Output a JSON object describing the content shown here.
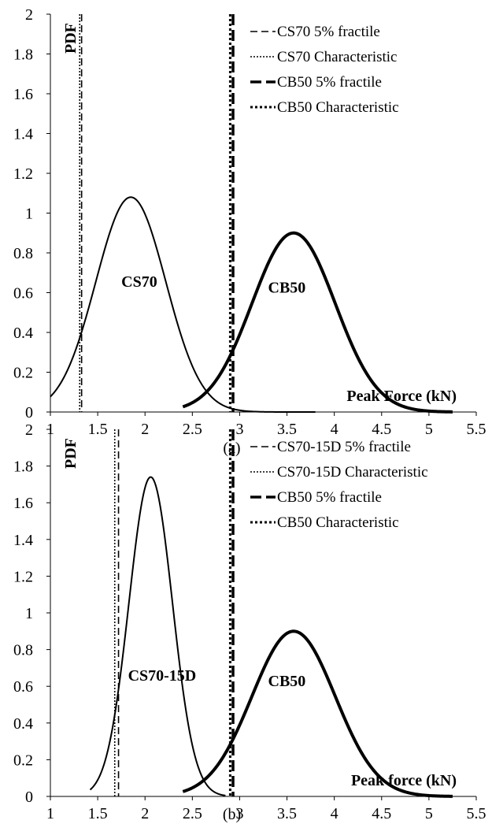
{
  "charts": [
    {
      "chart_data": {
        "type": "line",
        "caption": "(a)",
        "ylabel": "PDF",
        "xlabel": "Peak Force (kN)",
        "xlim": [
          1,
          5.5
        ],
        "ylim": [
          0,
          2
        ],
        "x_ticks": [
          "1",
          "1.5",
          "2",
          "2.5",
          "3",
          "3.5",
          "4",
          "4.5",
          "5",
          "5.5"
        ],
        "y_ticks": [
          "0",
          "0.2",
          "0.4",
          "0.6",
          "0.8",
          "1",
          "1.2",
          "1.4",
          "1.6",
          "1.8",
          "2"
        ],
        "legend_position": "top-right",
        "legend": [
          "CS70 5% fractile",
          "CS70 Characteristic",
          "CB50 5% fractile",
          "CB50 Characteristic"
        ],
        "curves": [
          {
            "label": "CS70",
            "label_at": [
              1.75,
              0.63
            ],
            "x_range": [
              1,
              3.8
            ],
            "mean": 1.85,
            "sd": 0.37,
            "peak": 1.08,
            "stroke_width": 2
          },
          {
            "label": "CB50",
            "label_at": [
              3.3,
              0.6
            ],
            "x_range": [
              2.4,
              5.25
            ],
            "mean": 3.57,
            "sd": 0.44,
            "peak": 0.9,
            "stroke_width": 4
          }
        ],
        "vlines": [
          {
            "x": 1.33,
            "dash": "9 5",
            "width": 1.6
          },
          {
            "x": 1.31,
            "dash": "2 2",
            "width": 1.6
          },
          {
            "x": 2.93,
            "dash": "14 6",
            "width": 3.5
          },
          {
            "x": 2.9,
            "dash": "3 3",
            "width": 3
          }
        ]
      }
    },
    {
      "chart_data": {
        "type": "line",
        "caption": "(b)",
        "ylabel": "PDF",
        "xlabel": "Peak force (kN)",
        "xlim": [
          1,
          5.5
        ],
        "ylim": [
          0,
          2
        ],
        "x_ticks": [
          "1",
          "1.5",
          "2",
          "2.5",
          "3",
          "3.5",
          "4",
          "4.5",
          "5",
          "5.5"
        ],
        "y_ticks": [
          "0",
          "0.2",
          "0.4",
          "0.6",
          "0.8",
          "1",
          "1.2",
          "1.4",
          "1.6",
          "1.8",
          "2"
        ],
        "legend_position": "top-right",
        "legend": [
          "CS70-15D 5% fractile",
          "CS70-15D Characteristic",
          "CB50 5% fractile",
          "CB50 Characteristic"
        ],
        "curves": [
          {
            "label": "CS70-15D",
            "label_at": [
              1.82,
              0.63
            ],
            "x_range": [
              1.42,
              2.85
            ],
            "mean": 2.06,
            "sd": 0.23,
            "peak": 1.74,
            "stroke_width": 2
          },
          {
            "label": "CB50",
            "label_at": [
              3.3,
              0.6
            ],
            "x_range": [
              2.4,
              5.25
            ],
            "mean": 3.57,
            "sd": 0.44,
            "peak": 0.9,
            "stroke_width": 4
          }
        ],
        "vlines": [
          {
            "x": 1.72,
            "dash": "9 5",
            "width": 1.6
          },
          {
            "x": 1.68,
            "dash": "2 2",
            "width": 1.6
          },
          {
            "x": 2.93,
            "dash": "14 6",
            "width": 3.5
          },
          {
            "x": 2.9,
            "dash": "3 3",
            "width": 3
          }
        ]
      }
    }
  ]
}
